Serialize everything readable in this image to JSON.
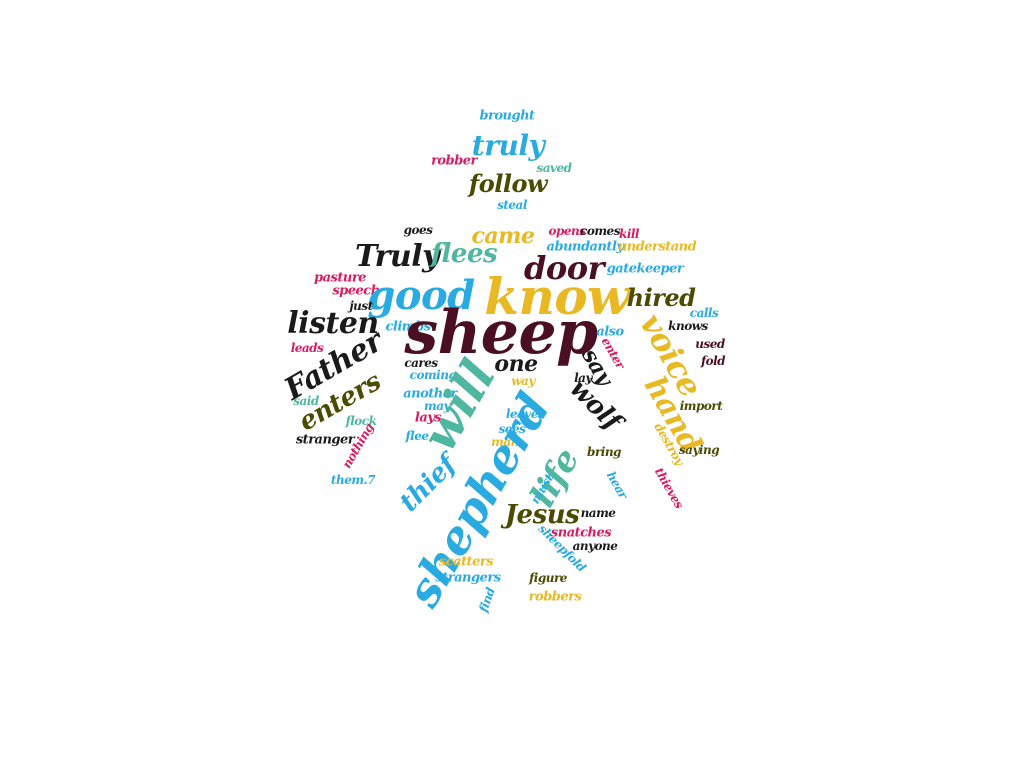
{
  "words": [
    {
      "text": "brought"
    },
    {
      "text": "truly"
    },
    {
      "text": "robber"
    },
    {
      "text": "saved"
    },
    {
      "text": "follow"
    },
    {
      "text": "steal"
    },
    {
      "text": "goes"
    },
    {
      "text": "opens"
    },
    {
      "text": "comes"
    },
    {
      "text": "kill"
    },
    {
      "text": "came"
    },
    {
      "text": "abundantly"
    },
    {
      "text": "understand"
    },
    {
      "text": "Truly"
    },
    {
      "text": "flees"
    },
    {
      "text": "door"
    },
    {
      "text": "gatekeeper"
    },
    {
      "text": "pasture"
    },
    {
      "text": "speech"
    },
    {
      "text": "good"
    },
    {
      "text": "know"
    },
    {
      "text": "hired"
    },
    {
      "text": "just"
    },
    {
      "text": "calls"
    },
    {
      "text": "listen"
    },
    {
      "text": "climbs"
    },
    {
      "text": "sheep"
    },
    {
      "text": "also"
    },
    {
      "text": "knows"
    },
    {
      "text": "voice"
    },
    {
      "text": "leads"
    },
    {
      "text": "enter"
    },
    {
      "text": "used"
    },
    {
      "text": "Father"
    },
    {
      "text": "one"
    },
    {
      "text": "cares"
    },
    {
      "text": "say"
    },
    {
      "text": "fold"
    },
    {
      "text": "coming"
    },
    {
      "text": "lay"
    },
    {
      "text": "enters"
    },
    {
      "text": "way"
    },
    {
      "text": "another"
    },
    {
      "text": "said"
    },
    {
      "text": "may"
    },
    {
      "text": "will"
    },
    {
      "text": "wolf"
    },
    {
      "text": "import"
    },
    {
      "text": "lays"
    },
    {
      "text": "hand"
    },
    {
      "text": "flock"
    },
    {
      "text": "leaves"
    },
    {
      "text": "destroy"
    },
    {
      "text": "stranger"
    },
    {
      "text": "sees"
    },
    {
      "text": "flee"
    },
    {
      "text": "man"
    },
    {
      "text": "saying"
    },
    {
      "text": "nothing"
    },
    {
      "text": "bring"
    },
    {
      "text": "life"
    },
    {
      "text": "shepherd"
    },
    {
      "text": "thief"
    },
    {
      "text": "them.7"
    },
    {
      "text": "hear"
    },
    {
      "text": "thieves"
    },
    {
      "text": "must"
    },
    {
      "text": "Jesus"
    },
    {
      "text": "name"
    },
    {
      "text": "snatches"
    },
    {
      "text": "sheepfold"
    },
    {
      "text": "anyone"
    },
    {
      "text": "scatters"
    },
    {
      "text": "strangers"
    },
    {
      "text": "figure"
    },
    {
      "text": "find"
    },
    {
      "text": "robbers"
    }
  ]
}
